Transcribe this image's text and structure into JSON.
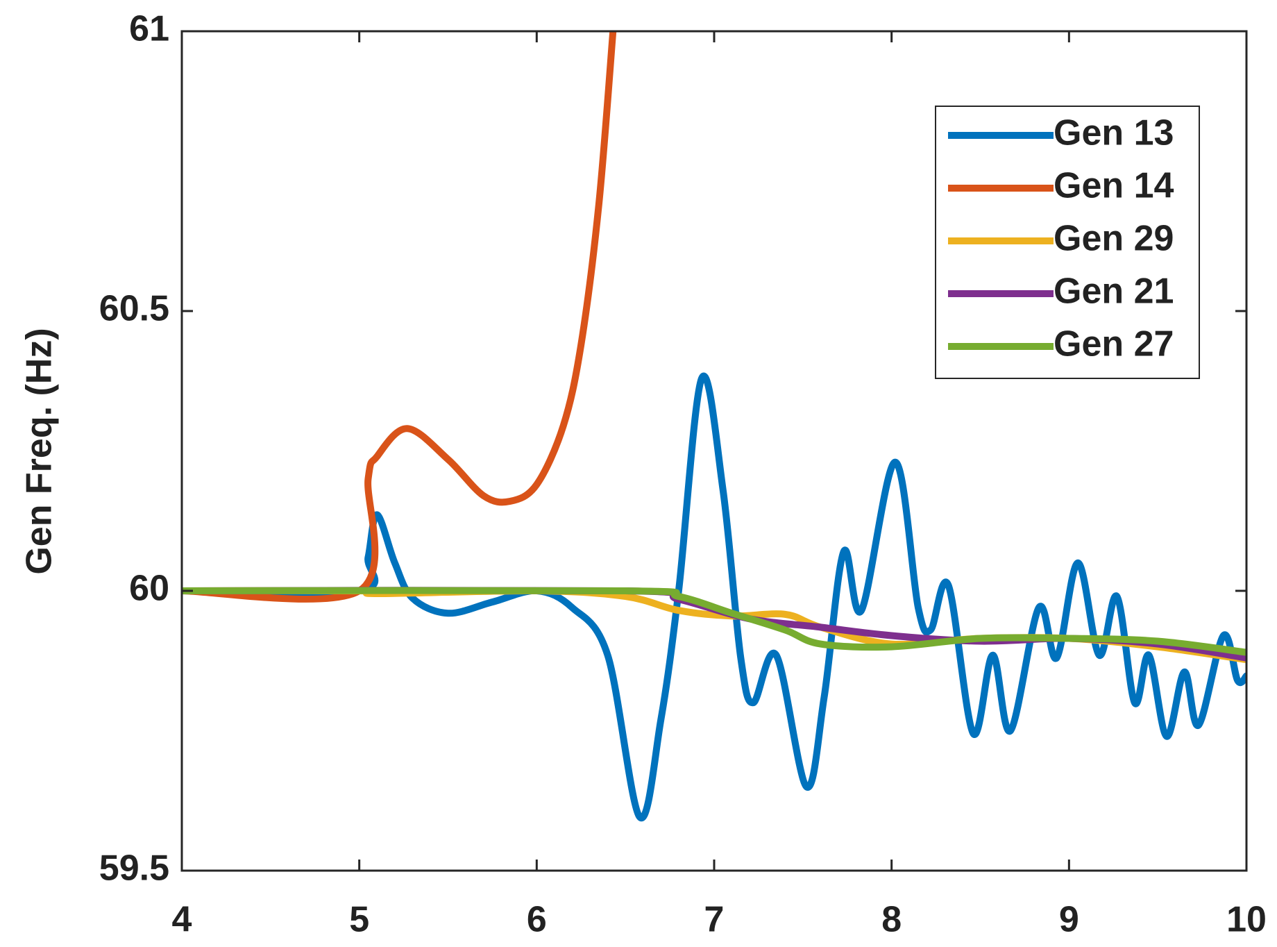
{
  "chart_data": {
    "type": "line",
    "ylabel": "Gen Freq. (Hz)",
    "xlim": [
      4,
      10
    ],
    "xticks": [
      4,
      5,
      6,
      7,
      8,
      9,
      10
    ],
    "ylim": [
      59.5,
      61
    ],
    "yticks": [
      59.5,
      60,
      60.5,
      61
    ],
    "legend": "upper right",
    "series": [
      {
        "name": "Gen 13",
        "color": "#0072bd",
        "x": [
          4,
          5,
          5.05,
          5.1,
          5.2,
          5.3,
          5.5,
          5.75,
          6.0,
          6.2,
          6.4,
          6.58,
          6.7,
          6.8,
          6.93,
          7.05,
          7.15,
          7.22,
          7.35,
          7.52,
          7.62,
          7.73,
          7.83,
          8.02,
          8.15,
          8.22,
          8.32,
          8.46,
          8.57,
          8.67,
          8.83,
          8.93,
          9.05,
          9.17,
          9.27,
          9.37,
          9.45,
          9.55,
          9.65,
          9.73,
          9.87,
          9.95,
          10
        ],
        "values": [
          60,
          60,
          60.06,
          60.136,
          60.05,
          59.987,
          59.96,
          59.98,
          60.0,
          59.97,
          59.885,
          59.596,
          59.77,
          60.0,
          60.38,
          60.18,
          59.88,
          59.8,
          59.885,
          59.65,
          59.81,
          60.07,
          59.965,
          60.23,
          59.97,
          59.93,
          60.01,
          59.745,
          59.885,
          59.75,
          59.97,
          59.88,
          60.05,
          59.885,
          59.99,
          59.8,
          59.885,
          59.74,
          59.855,
          59.76,
          59.92,
          59.84,
          59.848
        ]
      },
      {
        "name": "Gen 14",
        "color": "#d95319",
        "x": [
          4,
          5,
          5.05,
          5.1,
          5.27,
          5.5,
          5.7,
          5.85,
          6.0,
          6.15,
          6.25,
          6.35,
          6.43
        ],
        "values": [
          60,
          60,
          60.2,
          60.24,
          60.29,
          60.235,
          60.17,
          60.16,
          60.19,
          60.295,
          60.44,
          60.69,
          61.0
        ]
      },
      {
        "name": "Gen 29",
        "color": "#edb120",
        "x": [
          4,
          5,
          5.1,
          6,
          6.5,
          6.8,
          7.1,
          7.4,
          7.6,
          8,
          8.5,
          9,
          9.5,
          10
        ],
        "values": [
          60,
          60,
          59.995,
          60,
          59.99,
          59.965,
          59.955,
          59.958,
          59.935,
          59.905,
          59.915,
          59.915,
          59.9,
          59.877
        ]
      },
      {
        "name": "Gen 21",
        "color": "#7e2f8e",
        "x": [
          4,
          6.5,
          6.8,
          7.2,
          7.6,
          8,
          8.5,
          9,
          9.5,
          10
        ],
        "values": [
          60,
          60,
          59.985,
          59.95,
          59.935,
          59.92,
          59.91,
          59.915,
          59.905,
          59.88
        ]
      },
      {
        "name": "Gen 27",
        "color": "#77ac30",
        "x": [
          4,
          6.5,
          6.8,
          7.1,
          7.4,
          7.6,
          8,
          8.5,
          9,
          9.5,
          10
        ],
        "values": [
          60,
          60,
          59.99,
          59.96,
          59.93,
          59.905,
          59.9,
          59.915,
          59.915,
          59.91,
          59.89
        ]
      }
    ]
  }
}
